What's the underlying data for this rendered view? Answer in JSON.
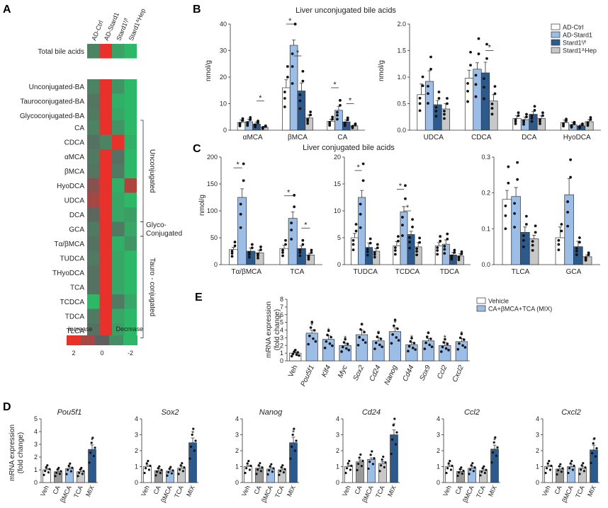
{
  "colors": {
    "white": "#ffffff",
    "lightblue": "#9bbde6",
    "navy": "#2c5a8c",
    "grey": "#c8c8c8",
    "midgrey": "#9a9a9a",
    "red": "#e8312a",
    "green": "#2db868"
  },
  "panel_labels": {
    "A": "A",
    "B": "B",
    "C": "C",
    "D": "D",
    "E": "E"
  },
  "chart_data": [
    {
      "id": "A",
      "type": "heatmap",
      "columns": [
        "AD-Ctrl",
        "AD-Stard1",
        "Stard1ᶠ/ᶠ",
        "Stard1ᐞHep"
      ],
      "groups": [
        {
          "rows": [
            {
              "label": "Total bile acids",
              "values": [
                -0.8,
                2,
                -1.5,
                -2
              ]
            }
          ]
        },
        {
          "rows": [
            {
              "label": "Unconjugated-BA",
              "values": [
                -0.8,
                2,
                -1.2,
                -2
              ]
            },
            {
              "label": "Tauroconjugated-BA",
              "values": [
                -0.5,
                2,
                -1.8,
                -2
              ]
            },
            {
              "label": "Glycoconjugated-BA",
              "values": [
                -0.6,
                2,
                -1.6,
                -2
              ]
            }
          ]
        },
        {
          "rows": [
            {
              "label": "CA",
              "values": [
                -0.8,
                2,
                -1.2,
                -2
              ]
            },
            {
              "label": "CDCA",
              "values": [
                -0.4,
                -0.8,
                2,
                -1.8
              ]
            },
            {
              "label": "αMCA",
              "values": [
                -0.6,
                2,
                -0.4,
                -2
              ]
            },
            {
              "label": "βMCA",
              "values": [
                -0.5,
                2,
                -0.6,
                -2
              ]
            },
            {
              "label": "HyoDCA",
              "values": [
                0.6,
                2,
                -1.8,
                1.2
              ]
            },
            {
              "label": "UDCA",
              "values": [
                1.0,
                2,
                -1.6,
                -2
              ]
            },
            {
              "label": "DCA",
              "values": [
                -0.2,
                2,
                -1.6,
                -1.4
              ]
            },
            {
              "label": "GCA",
              "values": [
                -0.6,
                2,
                -0.6,
                -1.6
              ]
            },
            {
              "label": "Tα/βMCA",
              "values": [
                -0.4,
                2,
                -1.8,
                -1.2
              ]
            },
            {
              "label": "TUDCA",
              "values": [
                -0.6,
                2,
                -1.6,
                -2
              ]
            },
            {
              "label": "THyoDCA",
              "values": [
                -0.4,
                2,
                -1.6,
                -2
              ]
            },
            {
              "label": "TCA",
              "values": [
                -0.4,
                2,
                -1.6,
                -2
              ]
            },
            {
              "label": "TCDCA",
              "values": [
                -2,
                2,
                -0.6,
                -1.6
              ]
            },
            {
              "label": "TDCA",
              "values": [
                -0.6,
                2,
                -1.6,
                -2
              ]
            },
            {
              "label": "TLCA",
              "values": [
                -0.4,
                2,
                -1.4,
                -2
              ]
            }
          ]
        }
      ],
      "brackets": [
        {
          "label": "Unconjugated",
          "from": "CA",
          "to": "DCA"
        },
        {
          "label": "Glyco-\nConjugated",
          "from": "GCA",
          "to": "GCA"
        },
        {
          "label": "Tauro - conjugated",
          "from": "Tα/βMCA",
          "to": "TLCA"
        }
      ],
      "legend": {
        "left": "Increase",
        "right": "Decrease",
        "ticks": [
          "2",
          "0",
          "-2"
        ],
        "range": [
          2,
          -2
        ]
      }
    },
    {
      "id": "B",
      "type": "bar",
      "title": "Liver unconjugated bile acids",
      "ylabel": "nmol/g",
      "series": [
        "AD-Ctrl",
        "AD-Stard1",
        "Stard1ᶠ/ᶠ",
        "Stard1ᐞHep"
      ],
      "subplots": [
        {
          "ylim": [
            0,
            40
          ],
          "yticks": [
            0,
            10,
            20,
            30,
            40
          ],
          "categories": [
            "αMCA",
            "βMCA",
            "CA"
          ],
          "values": [
            [
              2.9,
              3.2,
              2.3,
              1.1
            ],
            [
              16,
              32,
              14.8,
              4.6
            ],
            [
              3.3,
              7.5,
              3.1,
              1.6
            ]
          ],
          "errors": [
            [
              1,
              1,
              0.8,
              0.4
            ],
            [
              3,
              2,
              3,
              1.2
            ],
            [
              0.8,
              1.5,
              0.8,
              0.3
            ]
          ],
          "sig": [
            [
              2,
              3,
              "*"
            ],
            [
              0,
              1,
              "*"
            ],
            [
              1,
              2,
              "*"
            ],
            [
              0,
              1,
              "*"
            ],
            [
              2,
              3,
              "*"
            ]
          ],
          "sig_cat": [
            0,
            1,
            1,
            2,
            2
          ],
          "sig_y": [
            11,
            40,
            28,
            16,
            10
          ]
        },
        {
          "ylim": [
            0,
            2
          ],
          "yticks": [
            "0.0",
            "0.5",
            "1.0",
            "1.5",
            "2.0"
          ],
          "categories": [
            "UDCA",
            "CDCA",
            "DCA",
            "HyoDCA"
          ],
          "values": [
            [
              0.67,
              0.92,
              0.48,
              0.4
            ],
            [
              0.98,
              1.15,
              1.08,
              0.55
            ],
            [
              0.22,
              0.2,
              0.3,
              0.22
            ],
            [
              0.14,
              0.1,
              0.08,
              0.16
            ]
          ],
          "errors": [
            [
              0.2,
              0.2,
              0.08,
              0.1
            ],
            [
              0.15,
              0.12,
              0.2,
              0.12
            ],
            [
              0.05,
              0.05,
              0.05,
              0.05
            ],
            [
              0.05,
              0.05,
              0.03,
              0.04
            ]
          ],
          "sig": [
            [
              2,
              3,
              "*"
            ]
          ],
          "sig_cat": [
            1
          ],
          "sig_y": [
            1.5
          ]
        }
      ]
    },
    {
      "id": "C",
      "type": "bar",
      "title": "Liver conjugated bile acids",
      "ylabel": "nmol/g",
      "subplots": [
        {
          "ylim": [
            0,
            200
          ],
          "yticks": [
            0,
            50,
            100,
            150,
            200
          ],
          "categories": [
            "Tα/βMCA",
            "TCA"
          ],
          "values": [
            [
              28,
              125,
              25,
              22
            ],
            [
              30,
              86,
              30,
              18
            ]
          ],
          "errors": [
            [
              4,
              16,
              6,
              5
            ],
            [
              6,
              12,
              5,
              3
            ]
          ],
          "sig": [
            [
              0,
              1,
              "*"
            ],
            [
              0,
              1,
              "*"
            ],
            [
              2,
              3,
              "*"
            ]
          ],
          "sig_cat": [
            0,
            1,
            1
          ],
          "sig_y": [
            180,
            128,
            68
          ]
        },
        {
          "ylim": [
            0,
            20
          ],
          "yticks": [
            0,
            5,
            10,
            15,
            20
          ],
          "categories": [
            "TUDCA",
            "TCDCA",
            "TDCA"
          ],
          "values": [
            [
              5,
              12.5,
              3.2,
              2.5
            ],
            [
              3.5,
              9.8,
              5.6,
              3.3
            ],
            [
              3.5,
              3.8,
              1.8,
              1.6
            ]
          ],
          "errors": [
            [
              0.8,
              1.3,
              0.8,
              0.5
            ],
            [
              0.8,
              1,
              0.6,
              0.8
            ],
            [
              0.6,
              0.8,
              0.5,
              0.4
            ]
          ],
          "sig": [
            [
              0,
              1,
              "*"
            ],
            [
              0,
              1,
              "*"
            ],
            [
              1,
              2,
              "*"
            ]
          ],
          "sig_cat": [
            0,
            1,
            1
          ],
          "sig_y": [
            17.5,
            14,
            10
          ]
        },
        {
          "ylim": [
            0,
            0.3
          ],
          "yticks": [
            "0.0",
            "0.1",
            "0.2",
            "0.3"
          ],
          "categories": [
            "TLCA",
            "GCA"
          ],
          "values": [
            [
              0.182,
              0.19,
              0.09,
              0.072
            ],
            [
              0.075,
              0.195,
              0.05,
              0.022
            ]
          ],
          "errors": [
            [
              0.025,
              0.025,
              0.015,
              0.01
            ],
            [
              0.03,
              0.045,
              0.015,
              0.005
            ]
          ],
          "sig": [],
          "sig_cat": [],
          "sig_y": []
        }
      ]
    },
    {
      "id": "E",
      "type": "bar",
      "ylabel": "mRNA expression\n(fold change)",
      "ylim": [
        0,
        8
      ],
      "yticks": [
        0,
        1,
        2,
        3,
        4,
        5,
        6,
        7,
        8
      ],
      "legend": [
        "Vehicle",
        "CA+βMCA+TCA (MIX)"
      ],
      "categories": [
        "Veh",
        "Pou5f1",
        "Klf4",
        "Myc",
        "Sox2",
        "Cd24",
        "Nanog",
        "Cd44",
        "Sox9",
        "Ccl2",
        "Cxcl2"
      ],
      "values": [
        1.0,
        3.6,
        2.8,
        2.0,
        3.4,
        2.6,
        3.8,
        2.1,
        2.6,
        2.0,
        2.5
      ],
      "errors": [
        0.1,
        0.4,
        0.5,
        0.3,
        0.6,
        0.4,
        0.5,
        0.3,
        0.3,
        0.4,
        0.4
      ],
      "stars": [
        "",
        "*",
        "*",
        "*",
        "*",
        "*",
        "*",
        "*",
        "*",
        "*",
        "*"
      ]
    },
    {
      "id": "D",
      "type": "bar",
      "ylabel": "mRNA expression\n(fold change)",
      "categories": [
        "Veh",
        "CA",
        "βMCA",
        "TCA",
        "MIX"
      ],
      "subplots": [
        {
          "title": "Pou5f1",
          "ylim": [
            0,
            5
          ],
          "yticks": [
            0,
            1,
            2,
            3,
            4,
            5
          ],
          "values": [
            1.0,
            0.85,
            1.1,
            0.85,
            2.6
          ],
          "errors": [
            0.1,
            0.15,
            0.12,
            0.15,
            0.35
          ]
        },
        {
          "title": "Sox2",
          "ylim": [
            0,
            4
          ],
          "yticks": [
            0,
            1,
            2,
            3,
            4
          ],
          "values": [
            1.0,
            0.75,
            0.72,
            0.9,
            2.5
          ],
          "errors": [
            0.1,
            0.12,
            0.12,
            0.12,
            0.3
          ]
        },
        {
          "title": "Nanog",
          "ylim": [
            0,
            4
          ],
          "yticks": [
            0,
            1,
            2,
            3,
            4
          ],
          "values": [
            1.0,
            0.9,
            0.85,
            0.8,
            2.5
          ],
          "errors": [
            0.08,
            0.12,
            0.1,
            0.1,
            0.35
          ]
        },
        {
          "title": "Cd24",
          "ylim": [
            0,
            4
          ],
          "yticks": [
            0,
            1,
            2,
            3,
            4
          ],
          "values": [
            1.0,
            1.3,
            1.45,
            1.2,
            3.0
          ],
          "errors": [
            0.08,
            0.12,
            0.1,
            0.12,
            0.3
          ]
        },
        {
          "title": "Ccl2",
          "ylim": [
            0,
            4
          ],
          "yticks": [
            0,
            1,
            2,
            3,
            4
          ],
          "values": [
            1.0,
            0.7,
            0.9,
            0.75,
            2.1
          ],
          "errors": [
            0.1,
            0.12,
            0.12,
            0.1,
            0.25
          ]
        },
        {
          "title": "Cxcl2",
          "ylim": [
            0,
            4
          ],
          "yticks": [
            0,
            1,
            2,
            3,
            4
          ],
          "values": [
            1.0,
            0.85,
            1.0,
            0.9,
            2.05
          ],
          "errors": [
            0.08,
            0.15,
            0.15,
            0.12,
            0.3
          ]
        }
      ],
      "stars": [
        "",
        "",
        "",
        "",
        "*"
      ]
    }
  ]
}
